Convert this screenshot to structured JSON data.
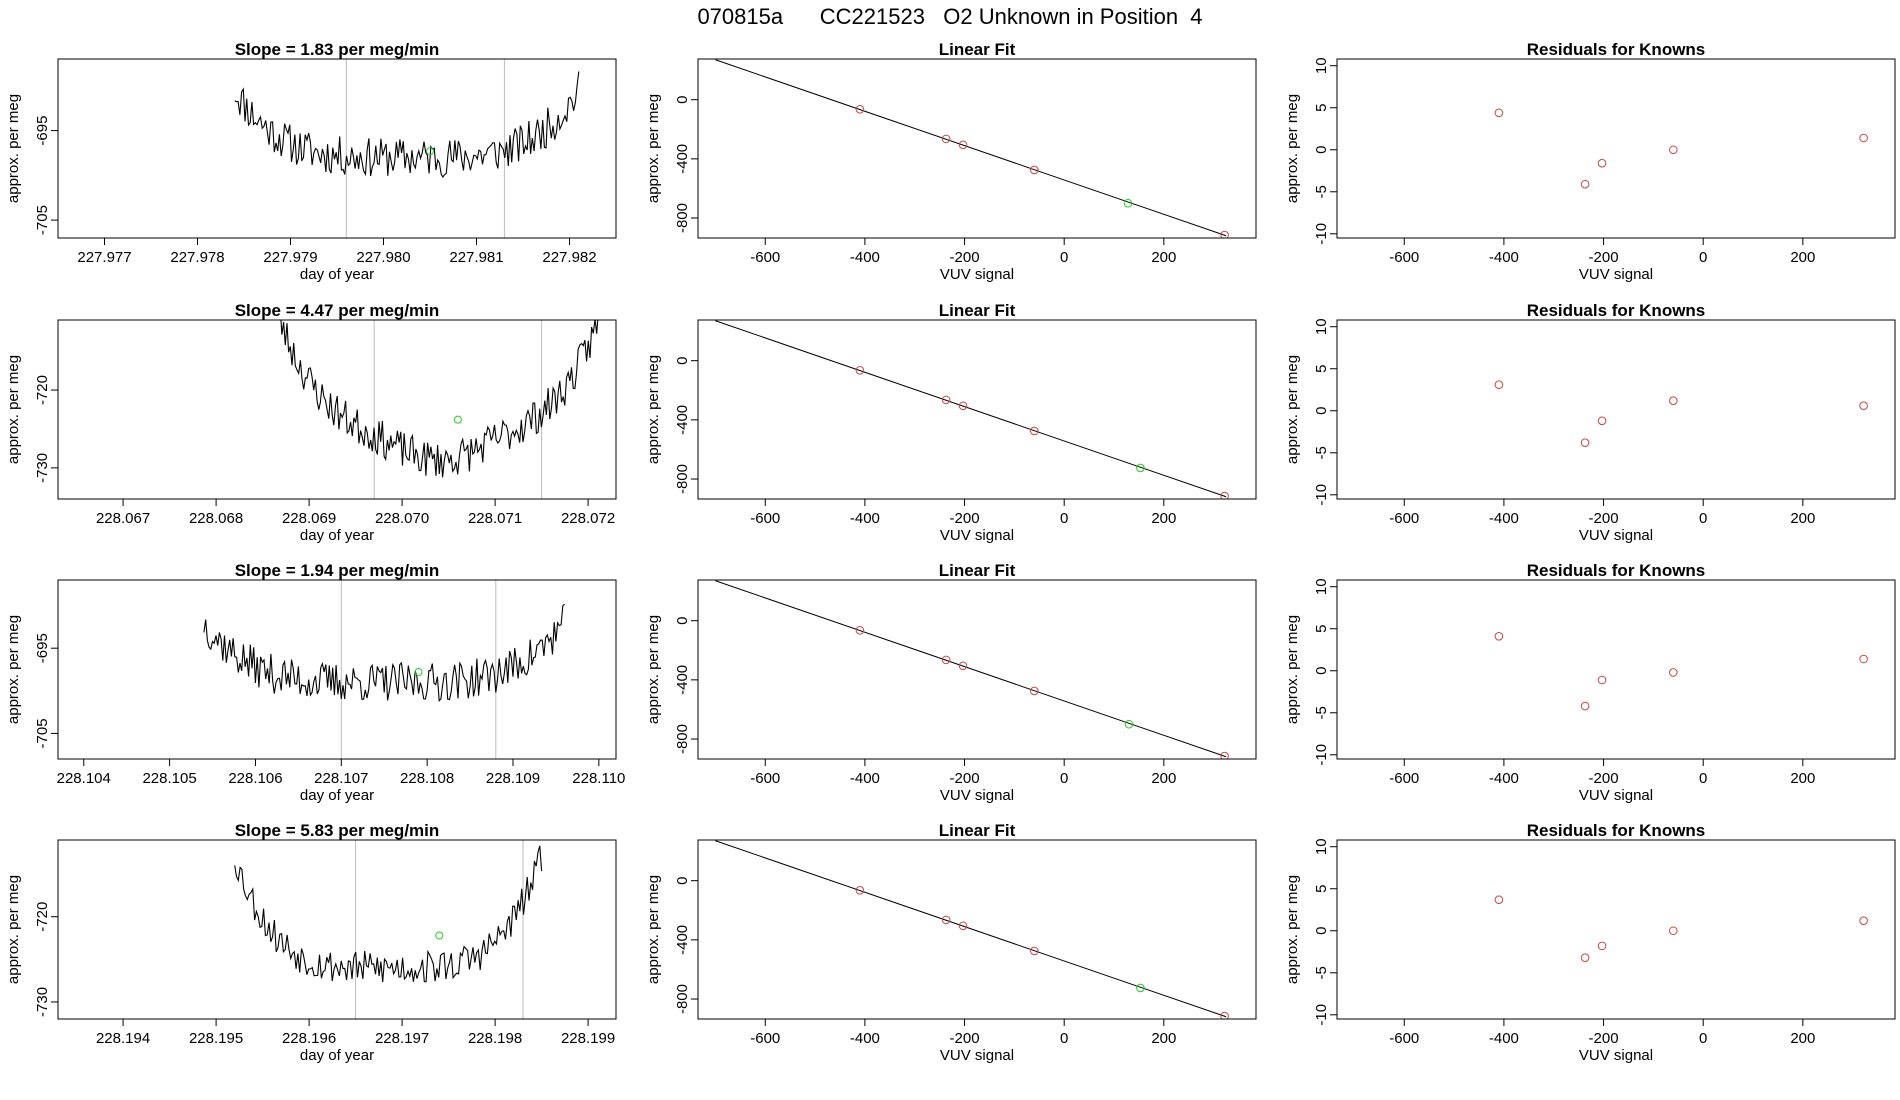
{
  "page_title": "070815a      CC221523   O2 Unknown in Position  4",
  "chart_data": [
    {
      "row": 0,
      "panel": "time_series",
      "type": "line",
      "title": "Slope =  1.83  per meg/min",
      "xlabel": "day of year",
      "ylabel": "approx. per meg",
      "xlim": [
        227.9765,
        227.9825
      ],
      "ylim": [
        -707,
        -687
      ],
      "xticks": [
        "227.977",
        "227.978",
        "227.979",
        "227.980",
        "227.981",
        "227.982"
      ],
      "yticks": [
        "-695",
        "-705"
      ],
      "vlines": [
        227.9796,
        227.9813
      ],
      "highlight_point": {
        "x": 227.9805,
        "y": -697.3
      },
      "trace": {
        "x_start": 227.9784,
        "x_end": 227.9821,
        "base": -698,
        "depth": 0,
        "curve": 7.5,
        "noise": 2.2,
        "n": 200,
        "seed": 11
      }
    },
    {
      "row": 0,
      "panel": "linear_fit",
      "type": "scatter",
      "title": "Linear Fit",
      "xlabel": "VUV signal",
      "ylabel": "approx. per meg",
      "xlim": [
        -735,
        385
      ],
      "ylim": [
        -935,
        275
      ],
      "xticks": [
        "-600",
        "-400",
        "-200",
        "0",
        "200"
      ],
      "yticks": [
        "0",
        "-400",
        "-800"
      ],
      "line": {
        "x0": -700,
        "y0": 270,
        "x1": 325,
        "y1": -920
      },
      "known_points": [
        {
          "x": -410,
          "y": -65
        },
        {
          "x": -237,
          "y": -265
        },
        {
          "x": -203,
          "y": -305
        },
        {
          "x": -60,
          "y": -475
        },
        {
          "x": 322,
          "y": -915
        }
      ],
      "unknown_point": {
        "x": 128,
        "y": -700
      }
    },
    {
      "row": 0,
      "panel": "residuals",
      "type": "scatter",
      "title": "Residuals for Knowns",
      "xlabel": "VUV signal",
      "ylabel": "approx. per meg",
      "xlim": [
        -735,
        385
      ],
      "ylim": [
        -10.5,
        10.8
      ],
      "xticks": [
        "-600",
        "-400",
        "-200",
        "0",
        "200"
      ],
      "yticks": [
        "10",
        "5",
        "0",
        "-5",
        "-10"
      ],
      "points": [
        {
          "x": -410,
          "y": 4.4
        },
        {
          "x": -237,
          "y": -4.1
        },
        {
          "x": -203,
          "y": -1.6
        },
        {
          "x": -60,
          "y": 0
        },
        {
          "x": 322,
          "y": 1.4
        }
      ]
    },
    {
      "row": 1,
      "panel": "time_series",
      "type": "line",
      "title": "Slope =  4.47  per meg/min",
      "xlabel": "day of year",
      "ylabel": "approx. per meg",
      "xlim": [
        228.0663,
        228.0723
      ],
      "ylim": [
        -734,
        -711
      ],
      "xticks": [
        "228.067",
        "228.068",
        "228.069",
        "228.070",
        "228.071",
        "228.072"
      ],
      "yticks": [
        "-720",
        "-730"
      ],
      "vlines": [
        228.0697,
        228.0715
      ],
      "highlight_point": {
        "x": 228.0706,
        "y": -723.8
      },
      "trace": {
        "x_start": 228.0686,
        "x_end": 228.0722,
        "base": -725,
        "depth": 4,
        "curve": 17,
        "noise": 2.4,
        "n": 200,
        "seed": 23
      }
    },
    {
      "row": 1,
      "panel": "linear_fit",
      "type": "scatter",
      "title": "Linear Fit",
      "xlabel": "VUV signal",
      "ylabel": "approx. per meg",
      "xlim": [
        -735,
        385
      ],
      "ylim": [
        -935,
        275
      ],
      "xticks": [
        "-600",
        "-400",
        "-200",
        "0",
        "200"
      ],
      "yticks": [
        "0",
        "-400",
        "-800"
      ],
      "line": {
        "x0": -700,
        "y0": 270,
        "x1": 325,
        "y1": -920
      },
      "known_points": [
        {
          "x": -410,
          "y": -65
        },
        {
          "x": -237,
          "y": -265
        },
        {
          "x": -203,
          "y": -305
        },
        {
          "x": -60,
          "y": -475
        },
        {
          "x": 322,
          "y": -915
        }
      ],
      "unknown_point": {
        "x": 153,
        "y": -725
      }
    },
    {
      "row": 1,
      "panel": "residuals",
      "type": "scatter",
      "title": "Residuals for Knowns",
      "xlabel": "VUV signal",
      "ylabel": "approx. per meg",
      "xlim": [
        -735,
        385
      ],
      "ylim": [
        -10.5,
        10.8
      ],
      "xticks": [
        "-600",
        "-400",
        "-200",
        "0",
        "200"
      ],
      "yticks": [
        "10",
        "5",
        "0",
        "-5",
        "-10"
      ],
      "points": [
        {
          "x": -410,
          "y": 3.1
        },
        {
          "x": -237,
          "y": -3.8
        },
        {
          "x": -203,
          "y": -1.2
        },
        {
          "x": -60,
          "y": 1.2
        },
        {
          "x": 322,
          "y": 0.6
        }
      ]
    },
    {
      "row": 2,
      "panel": "time_series",
      "type": "line",
      "title": "Slope =  1.94  per meg/min",
      "xlabel": "day of year",
      "ylabel": "approx. per meg",
      "xlim": [
        228.1037,
        228.1102
      ],
      "ylim": [
        -708,
        -687
      ],
      "xticks": [
        "228.104",
        "228.105",
        "228.106",
        "228.107",
        "228.108",
        "228.109",
        "228.110"
      ],
      "yticks": [
        "-695",
        "-705"
      ],
      "vlines": [
        228.107,
        228.1088
      ],
      "highlight_point": {
        "x": 228.1079,
        "y": -697.8
      },
      "trace": {
        "x_start": 228.1054,
        "x_end": 228.1096,
        "base": -699,
        "depth": 0,
        "curve": 7,
        "noise": 2.3,
        "n": 210,
        "seed": 37
      }
    },
    {
      "row": 2,
      "panel": "linear_fit",
      "type": "scatter",
      "title": "Linear Fit",
      "xlabel": "VUV signal",
      "ylabel": "approx. per meg",
      "xlim": [
        -735,
        385
      ],
      "ylim": [
        -935,
        275
      ],
      "xticks": [
        "-600",
        "-400",
        "-200",
        "0",
        "200"
      ],
      "yticks": [
        "0",
        "-400",
        "-800"
      ],
      "line": {
        "x0": -700,
        "y0": 270,
        "x1": 325,
        "y1": -920
      },
      "known_points": [
        {
          "x": -410,
          "y": -65
        },
        {
          "x": -237,
          "y": -265
        },
        {
          "x": -203,
          "y": -305
        },
        {
          "x": -60,
          "y": -475
        },
        {
          "x": 322,
          "y": -915
        }
      ],
      "unknown_point": {
        "x": 130,
        "y": -700
      }
    },
    {
      "row": 2,
      "panel": "residuals",
      "type": "scatter",
      "title": "Residuals for Knowns",
      "xlabel": "VUV signal",
      "ylabel": "approx. per meg",
      "xlim": [
        -735,
        385
      ],
      "ylim": [
        -10.5,
        10.8
      ],
      "xticks": [
        "-600",
        "-400",
        "-200",
        "0",
        "200"
      ],
      "yticks": [
        "10",
        "5",
        "0",
        "-5",
        "-10"
      ],
      "points": [
        {
          "x": -410,
          "y": 4.1
        },
        {
          "x": -237,
          "y": -4.2
        },
        {
          "x": -203,
          "y": -1.1
        },
        {
          "x": -60,
          "y": -0.2
        },
        {
          "x": 322,
          "y": 1.4
        }
      ]
    },
    {
      "row": 3,
      "panel": "time_series",
      "type": "line",
      "title": "Slope =  5.83  per meg/min",
      "xlabel": "day of year",
      "ylabel": "approx. per meg",
      "xlim": [
        228.1933,
        228.1993
      ],
      "ylim": [
        -732,
        -711
      ],
      "xticks": [
        "228.194",
        "228.195",
        "228.196",
        "228.197",
        "228.198",
        "228.199"
      ],
      "yticks": [
        "-720",
        "-730"
      ],
      "vlines": [
        228.1965,
        228.1983
      ],
      "highlight_point": {
        "x": 228.1974,
        "y": -722.2
      },
      "trace": {
        "x_start": 228.1952,
        "x_end": 228.1985,
        "base": -726,
        "depth": 0,
        "curve": 13,
        "noise": 2.0,
        "n": 170,
        "seed": 53
      }
    },
    {
      "row": 3,
      "panel": "linear_fit",
      "type": "scatter",
      "title": "Linear Fit",
      "xlabel": "VUV signal",
      "ylabel": "approx. per meg",
      "xlim": [
        -735,
        385
      ],
      "ylim": [
        -935,
        275
      ],
      "xticks": [
        "-600",
        "-400",
        "-200",
        "0",
        "200"
      ],
      "yticks": [
        "0",
        "-400",
        "-800"
      ],
      "line": {
        "x0": -700,
        "y0": 270,
        "x1": 325,
        "y1": -920
      },
      "known_points": [
        {
          "x": -410,
          "y": -65
        },
        {
          "x": -237,
          "y": -265
        },
        {
          "x": -203,
          "y": -305
        },
        {
          "x": -60,
          "y": -475
        },
        {
          "x": 322,
          "y": -915
        }
      ],
      "unknown_point": {
        "x": 153,
        "y": -725
      }
    },
    {
      "row": 3,
      "panel": "residuals",
      "type": "scatter",
      "title": "Residuals for Knowns",
      "xlabel": "VUV signal",
      "ylabel": "approx. per meg",
      "xlim": [
        -735,
        385
      ],
      "ylim": [
        -10.5,
        10.8
      ],
      "xticks": [
        "-600",
        "-400",
        "-200",
        "0",
        "200"
      ],
      "yticks": [
        "10",
        "5",
        "0",
        "-5",
        "-10"
      ],
      "points": [
        {
          "x": -410,
          "y": 3.7
        },
        {
          "x": -237,
          "y": -3.2
        },
        {
          "x": -203,
          "y": -1.8
        },
        {
          "x": -60,
          "y": 0
        },
        {
          "x": 322,
          "y": 1.2
        }
      ]
    }
  ]
}
